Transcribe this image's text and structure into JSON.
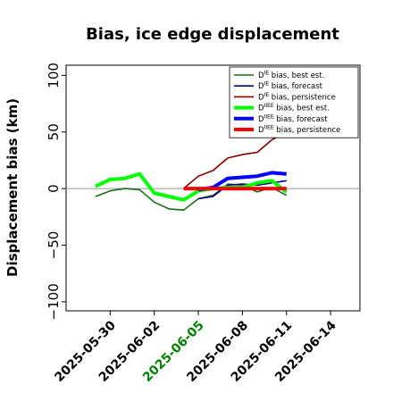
{
  "chart_data": {
    "type": "line",
    "title": "Bias, ice edge displacement",
    "ylabel": "Displacement bias (km)",
    "xlabel": "",
    "ylim": [
      -108,
      109
    ],
    "xlim": [
      "2025-05-27",
      "2025-06-16"
    ],
    "grid": false,
    "legend_position": "top-right",
    "y_ticks": [
      -100,
      -50,
      0,
      50,
      100
    ],
    "y_tick_labels": [
      "−100",
      "−50",
      "0",
      "50",
      "100"
    ],
    "x_ticks": [
      "2025-05-30",
      "2025-06-02",
      "2025-06-05",
      "2025-06-08",
      "2025-06-11",
      "2025-06-14"
    ],
    "x_tick_colors": [
      "#000000",
      "#000000",
      "#008000",
      "#000000",
      "#000000",
      "#000000"
    ],
    "reference_line": {
      "y": 0,
      "color": "#999999"
    },
    "series": [
      {
        "name": "D^IE bias, best est.",
        "name_base": "D",
        "name_sup": "IE",
        "name_rest": " bias, best est.",
        "color": "#1a6b1a",
        "width": 1.6,
        "x": [
          "2025-05-29",
          "2025-05-30",
          "2025-05-31",
          "2025-06-01",
          "2025-06-02",
          "2025-06-03",
          "2025-06-04",
          "2025-06-05",
          "2025-06-06",
          "2025-06-07",
          "2025-06-08",
          "2025-06-09",
          "2025-06-10",
          "2025-06-11"
        ],
        "y": [
          -7,
          -2,
          0,
          -1,
          -12,
          -18,
          -19,
          -9,
          -6,
          4,
          3,
          -3,
          1,
          -6
        ]
      },
      {
        "name": "D^IE bias, forecast",
        "name_base": "D",
        "name_sup": "IE",
        "name_rest": " bias, forecast",
        "color": "#00008b",
        "width": 1.6,
        "x": [
          "2025-06-05",
          "2025-06-06",
          "2025-06-07",
          "2025-06-08",
          "2025-06-09",
          "2025-06-10",
          "2025-06-11"
        ],
        "y": [
          -9,
          -7,
          3,
          4,
          3,
          5,
          7
        ]
      },
      {
        "name": "D^IE bias, persistence",
        "name_base": "D",
        "name_sup": "IE",
        "name_rest": " bias, persistence",
        "color": "#800000",
        "width": 1.6,
        "x": [
          "2025-06-04",
          "2025-06-05",
          "2025-06-06",
          "2025-06-07",
          "2025-06-08",
          "2025-06-09",
          "2025-06-10",
          "2025-06-11"
        ],
        "y": [
          0,
          11,
          16,
          27,
          30,
          32,
          43,
          50
        ]
      },
      {
        "name": "D^IIEE bias, best est.",
        "name_base": "D",
        "name_sup": "IIEE",
        "name_rest": " bias, best est.",
        "color": "#00ff00",
        "width": 4,
        "x": [
          "2025-05-29",
          "2025-05-30",
          "2025-05-31",
          "2025-06-01",
          "2025-06-02",
          "2025-06-03",
          "2025-06-04",
          "2025-06-05",
          "2025-06-06",
          "2025-06-07",
          "2025-06-08",
          "2025-06-09",
          "2025-06-10",
          "2025-06-11"
        ],
        "y": [
          2,
          8,
          9,
          13,
          -4,
          -7,
          -10,
          -2,
          0,
          1,
          1,
          5,
          7,
          -3
        ]
      },
      {
        "name": "D^IIEE bias, forecast",
        "name_base": "D",
        "name_sup": "IIEE",
        "name_rest": " bias, forecast",
        "color": "#0000ff",
        "width": 4,
        "x": [
          "2025-06-05",
          "2025-06-06",
          "2025-06-07",
          "2025-06-08",
          "2025-06-09",
          "2025-06-10",
          "2025-06-11"
        ],
        "y": [
          -1,
          1,
          9,
          10,
          11,
          14,
          13
        ]
      },
      {
        "name": "D^IIEE bias, persistence",
        "name_base": "D",
        "name_sup": "IIEE",
        "name_rest": " bias, persistence",
        "color": "#ff0000",
        "width": 4,
        "x": [
          "2025-06-04",
          "2025-06-05",
          "2025-06-06",
          "2025-06-07",
          "2025-06-08",
          "2025-06-09",
          "2025-06-10",
          "2025-06-11"
        ],
        "y": [
          0,
          0,
          0,
          0,
          0,
          0,
          0,
          0
        ]
      }
    ]
  }
}
